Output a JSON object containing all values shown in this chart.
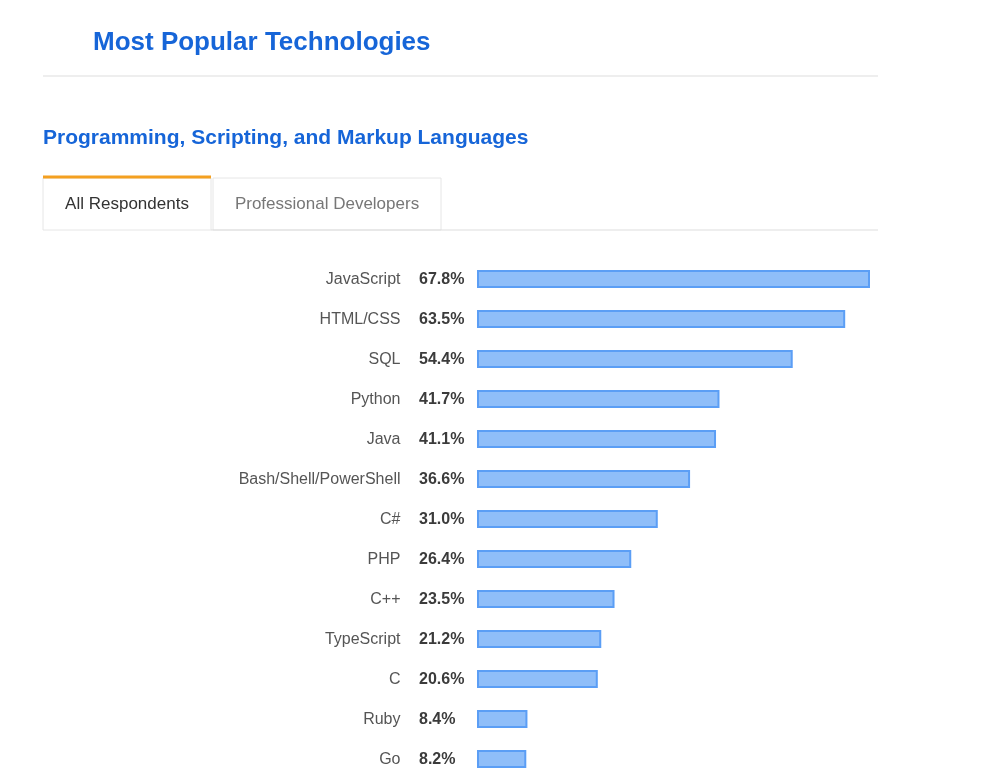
{
  "chart_data": {
    "type": "bar",
    "orientation": "horizontal",
    "title": "Most Popular Technologies",
    "subtitle": "Programming, Scripting, and Markup Languages",
    "annotations": [
      "All Respondents",
      "Professional Developers"
    ],
    "categories": [
      "JavaScript",
      "HTML/CSS",
      "SQL",
      "Python",
      "Java",
      "Bash/Shell/PowerShell",
      "C#",
      "PHP",
      "C++",
      "TypeScript",
      "C",
      "Ruby",
      "Go"
    ],
    "values": [
      67.8,
      63.5,
      54.4,
      41.7,
      41.1,
      36.6,
      31.0,
      26.4,
      23.5,
      21.2,
      20.6,
      8.4,
      8.2
    ],
    "value_labels": [
      "67.8%",
      "63.5%",
      "54.4%",
      "41.7%",
      "41.1%",
      "36.6%",
      "31.0%",
      "26.4%",
      "23.5%",
      "21.2%",
      "20.6%",
      "8.4%",
      "8.2%"
    ],
    "color": "#8fbef9",
    "tick_labels": "y"
  }
}
